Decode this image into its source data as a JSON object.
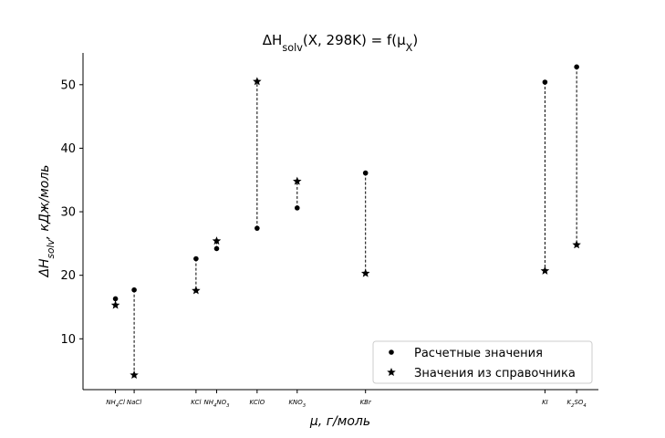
{
  "chart_data": {
    "type": "scatter",
    "title": "ΔH_solv(X, 298K) = f(μ_X)",
    "xlabel": "μ, г/моль",
    "ylabel": "ΔH_solv, кДж/моль",
    "ylim": [
      2,
      55
    ],
    "xlim": [
      45,
      180
    ],
    "yticks": [
      10,
      20,
      30,
      40,
      50
    ],
    "grid": false,
    "legend_position": "lower-right",
    "categories": [
      "NH4Cl",
      "NaCl",
      "KCl",
      "NH4NO3",
      "KClO",
      "KNO3",
      "KBr",
      "KI",
      "K2SO4"
    ],
    "category_labels": [
      {
        "base": "NH",
        "sub": "4",
        "rest": "Cl"
      },
      {
        "base": "NaCl",
        "sub": "",
        "rest": ""
      },
      {
        "base": "KCl",
        "sub": "",
        "rest": ""
      },
      {
        "base": "NH",
        "sub": "4",
        "rest": "NO",
        "sub2": "3"
      },
      {
        "base": "KClO",
        "sub": "",
        "rest": ""
      },
      {
        "base": "KNO",
        "sub": "3",
        "rest": ""
      },
      {
        "base": "KBr",
        "sub": "",
        "rest": ""
      },
      {
        "base": "KI",
        "sub": "",
        "rest": ""
      },
      {
        "base": "K",
        "sub": "2",
        "rest": "SO",
        "sub2": "4"
      }
    ],
    "x": [
      53.5,
      58.4,
      74.6,
      80.0,
      90.6,
      101.1,
      119.0,
      166.0,
      174.3
    ],
    "series": [
      {
        "name": "Расчетные значения",
        "marker": "dot",
        "values": [
          16.3,
          17.7,
          22.6,
          24.2,
          27.4,
          30.6,
          36.1,
          50.4,
          52.8
        ]
      },
      {
        "name": "Значения из справочника",
        "marker": "star",
        "values": [
          15.3,
          4.3,
          17.6,
          25.4,
          50.5,
          34.8,
          20.3,
          20.7,
          24.8
        ]
      }
    ]
  }
}
